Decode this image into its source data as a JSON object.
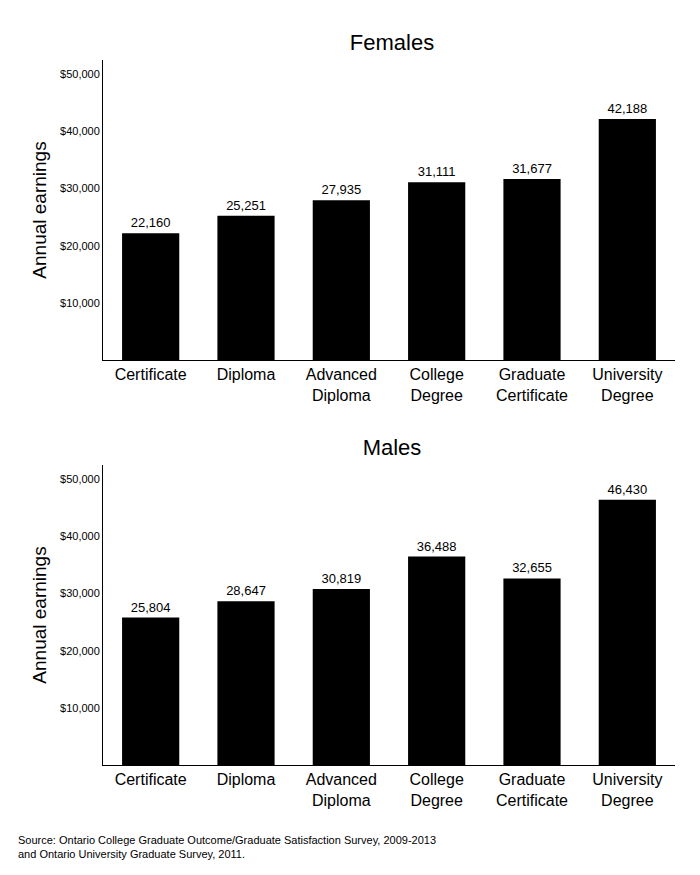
{
  "chart_data": [
    {
      "type": "bar",
      "title": "Females",
      "categories": [
        "Certificate",
        "Diploma",
        "Advanced Diploma",
        "College Degree",
        "Graduate Certificate",
        "University Degree"
      ],
      "values": [
        22160,
        25251,
        27935,
        31111,
        31677,
        42188
      ],
      "value_labels": [
        "22,160",
        "25,251",
        "27,935",
        "31,111",
        "31,677",
        "42,188"
      ],
      "data_labels": true,
      "color": "#000000",
      "ylabel": "Annual earnings",
      "ylim": [
        0,
        52500
      ],
      "yticks": [
        {
          "value": 10000,
          "label": "$10,000"
        },
        {
          "value": 20000,
          "label": "$20,000"
        },
        {
          "value": 30000,
          "label": "$30,000"
        },
        {
          "value": 40000,
          "label": "$40,000"
        },
        {
          "value": 50000,
          "label": "$50,000"
        }
      ],
      "grid": false
    },
    {
      "type": "bar",
      "title": "Males",
      "categories": [
        "Certificate",
        "Diploma",
        "Advanced Diploma",
        "College Degree",
        "Graduate Certificate",
        "University Degree"
      ],
      "values": [
        25804,
        28647,
        30819,
        36488,
        32655,
        46430
      ],
      "value_labels": [
        "25,804",
        "28,647",
        "30,819",
        "36,488",
        "32,655",
        "46,430"
      ],
      "data_labels": true,
      "color": "#000000",
      "ylabel": "Annual earnings",
      "ylim": [
        0,
        52500
      ],
      "yticks": [
        {
          "value": 10000,
          "label": "$10,000"
        },
        {
          "value": 20000,
          "label": "$20,000"
        },
        {
          "value": 30000,
          "label": "$30,000"
        },
        {
          "value": 40000,
          "label": "$40,000"
        },
        {
          "value": 50000,
          "label": "$50,000"
        }
      ],
      "grid": false
    }
  ],
  "source": [
    "Source: Ontario College Graduate Outcome/Graduate Satisfaction Survey, 2009-2013",
    "and Ontario University Graduate Survey, 2011."
  ]
}
